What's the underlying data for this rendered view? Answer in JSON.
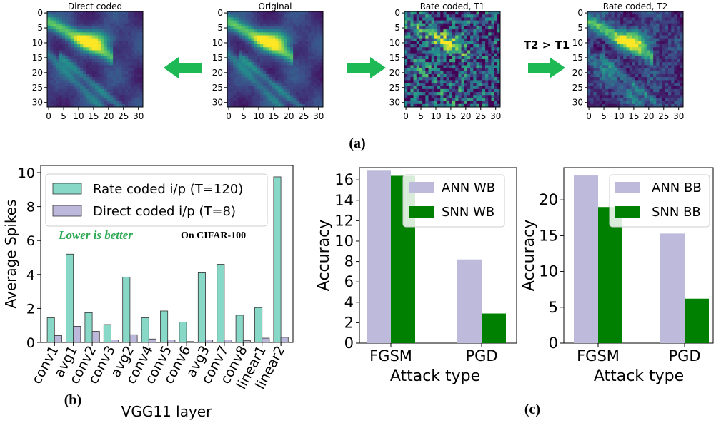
{
  "panels": {
    "a": {
      "caption": "(a)",
      "images": [
        {
          "title": "Direct coded",
          "style": "smooth"
        },
        {
          "title": "Original",
          "style": "smooth"
        },
        {
          "title": "Rate coded, T1",
          "style": "noisy"
        },
        {
          "title": "Rate coded, T2",
          "style": "lightnoise"
        }
      ],
      "yticks": [
        "0",
        "5",
        "10",
        "15",
        "20",
        "25",
        "30"
      ],
      "xticks": [
        "0",
        "5",
        "10",
        "15",
        "20",
        "25",
        "30"
      ],
      "arrow_label": "T2 > T1",
      "arrow_color": "#1db954"
    },
    "b": {
      "caption": "(b)"
    },
    "c": {
      "caption": "(c)"
    }
  },
  "chart_data": [
    {
      "type": "bar",
      "id": "spikes",
      "ylabel": "Average Spikes",
      "xlabel": "VGG11 layer",
      "ylim": [
        0,
        10
      ],
      "yticks": [
        0,
        2,
        4,
        6,
        8,
        10
      ],
      "categories": [
        "conv1",
        "avg1",
        "conv2",
        "conv3",
        "avg2",
        "conv4",
        "conv5",
        "conv6",
        "avg3",
        "conv7",
        "conv8",
        "linear1",
        "linear2"
      ],
      "series": [
        {
          "name": "Rate coded i/p (T=120)",
          "color": "#88d8c8",
          "values": [
            1.45,
            5.2,
            1.75,
            1.05,
            3.85,
            1.45,
            1.85,
            1.2,
            4.1,
            4.6,
            1.6,
            2.05,
            9.75
          ]
        },
        {
          "name": "Direct coded i/p (T=8)",
          "color": "#bcb8dc",
          "values": [
            0.4,
            0.95,
            0.65,
            0.15,
            0.45,
            0.2,
            0.15,
            0.05,
            0.15,
            0.15,
            0.1,
            0.25,
            0.3
          ]
        }
      ],
      "annotations": {
        "lower_is_better": "Lower is better",
        "dataset": "On CIFAR-100",
        "highlight_color": "#2eaa55"
      }
    },
    {
      "type": "bar",
      "id": "wb",
      "ylabel": "Accuracy",
      "xlabel": "Attack type",
      "ylim": [
        0,
        17.2
      ],
      "yticks": [
        0,
        2,
        4,
        6,
        8,
        10,
        12,
        14,
        16
      ],
      "categories": [
        "FGSM",
        "PGD"
      ],
      "series": [
        {
          "name": "ANN WB",
          "color": "#bdbadc",
          "values": [
            16.9,
            8.2
          ]
        },
        {
          "name": "SNN WB",
          "color": "#008000",
          "values": [
            16.4,
            2.9
          ]
        }
      ]
    },
    {
      "type": "bar",
      "id": "bb",
      "ylabel": "Accuracy",
      "xlabel": "Attack type",
      "ylim": [
        0,
        24.5
      ],
      "yticks": [
        0,
        5,
        10,
        15,
        20
      ],
      "categories": [
        "FGSM",
        "PGD"
      ],
      "series": [
        {
          "name": "ANN BB",
          "color": "#bdbadc",
          "values": [
            23.4,
            15.3
          ]
        },
        {
          "name": "SNN BB",
          "color": "#008000",
          "values": [
            19.0,
            6.2
          ]
        }
      ]
    }
  ]
}
